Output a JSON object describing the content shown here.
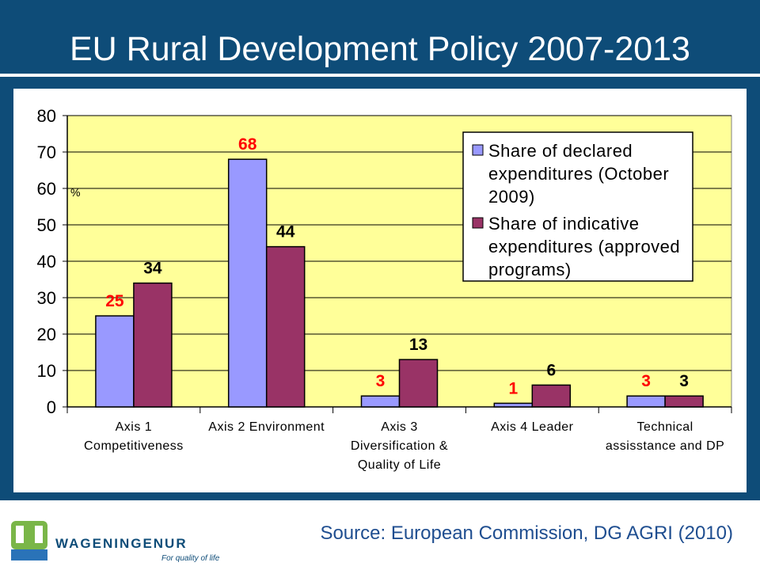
{
  "title": "EU Rural Development Policy 2007-2013",
  "source": "Source:  European Commission, DG AGRI (2010)",
  "logo": {
    "wordmark": "WAGENINGENUR",
    "tagline": "For quality of life"
  },
  "chart_data": {
    "type": "bar",
    "categories": [
      [
        "Axis 1",
        "Competitiveness"
      ],
      [
        "Axis 2 Environment"
      ],
      [
        "Axis 3",
        "Diversification &",
        "Quality of Life"
      ],
      [
        "Axis 4 Leader"
      ],
      [
        "Technical",
        "assisstance and DP"
      ]
    ],
    "series": [
      {
        "name": "Share of declared expenditures (October 2009)",
        "legend_lines": [
          "Share of declared",
          "expenditures (October",
          "2009)"
        ],
        "values": [
          25,
          68,
          3,
          1,
          3
        ],
        "labels": [
          "25",
          "68",
          "3",
          "1",
          "3"
        ],
        "color": "#9999ff",
        "label_color": "#ff0000"
      },
      {
        "name": "Share of indicative expenditures (approved programs)",
        "legend_lines": [
          "Share of indicative",
          "expenditures (approved",
          "programs)"
        ],
        "values": [
          34,
          44,
          13,
          6,
          3
        ],
        "labels": [
          "34",
          "44",
          "13",
          "6",
          "3"
        ],
        "color": "#993366",
        "label_color": "#000000"
      }
    ],
    "ylabel": "%",
    "ylim": [
      0,
      80
    ],
    "yticks": [
      0,
      10,
      20,
      30,
      40,
      50,
      60,
      70,
      80
    ],
    "grid": true,
    "plot_background": "#ffff99",
    "legend_position": "top-right"
  }
}
